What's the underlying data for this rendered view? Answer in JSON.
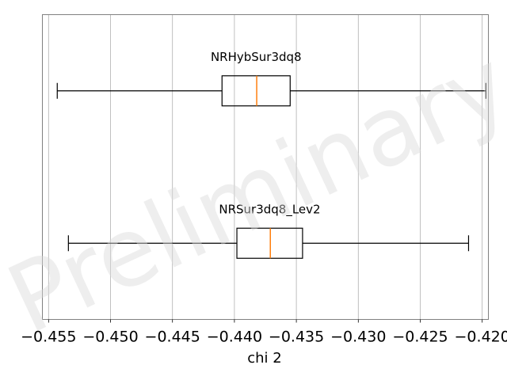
{
  "chart_data": {
    "type": "boxplot",
    "orientation": "horizontal",
    "xlabel": "chi 2",
    "xlim": [
      -0.4555,
      -0.4195
    ],
    "xticks": [
      -0.455,
      -0.45,
      -0.445,
      -0.44,
      -0.435,
      -0.43,
      -0.425,
      -0.42
    ],
    "xtick_labels": [
      "−0.455",
      "−0.450",
      "−0.445",
      "−0.440",
      "−0.435",
      "−0.430",
      "−0.425",
      "−0.420"
    ],
    "grid": "x",
    "watermark": "Preliminary",
    "boxes": [
      {
        "label": "NRHybSur3dq8",
        "whisker_low": -0.4543,
        "q1": -0.441,
        "median": -0.4382,
        "q3": -0.4355,
        "whisker_high": -0.4197
      },
      {
        "label": "NRSur3dq8_Lev2",
        "whisker_low": -0.4534,
        "q1": -0.4398,
        "median": -0.4371,
        "q3": -0.4345,
        "whisker_high": -0.4211
      }
    ],
    "colors": {
      "box": "#000000",
      "median": "#ff7f0e",
      "grid": "#b0b0b0",
      "frame": "#808080"
    }
  }
}
